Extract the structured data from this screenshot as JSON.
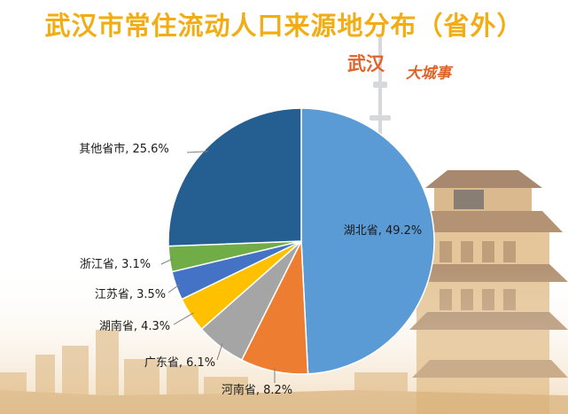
{
  "page": {
    "title": "武汉市常住流动人口来源地分布（省外）",
    "logo_text": "武汉",
    "logo_subtext": "大城事"
  },
  "colors": {
    "title": "#f2ad14",
    "logo": "#e0632a",
    "leader_line": "#7f7f7f",
    "label_text": "#1a1a1a",
    "slice_border": "#ffffff"
  },
  "chart_data": {
    "type": "pie",
    "title": "武汉市常住流动人口来源地分布（省外）",
    "value_unit": "%",
    "start_angle_deg": 0,
    "direction": "clockwise",
    "slices": [
      {
        "label": "湖北省",
        "value": 49.2,
        "value_text": "49.2%",
        "color": "#5b9bd5",
        "label_placement": "inside"
      },
      {
        "label": "河南省",
        "value": 8.2,
        "value_text": "8.2%",
        "color": "#ed7d31",
        "label_placement": "outside"
      },
      {
        "label": "广东省",
        "value": 6.1,
        "value_text": "6.1%",
        "color": "#a5a5a5",
        "label_placement": "outside"
      },
      {
        "label": "湖南省",
        "value": 4.3,
        "value_text": "4.3%",
        "color": "#ffc000",
        "label_placement": "outside"
      },
      {
        "label": "江苏省",
        "value": 3.5,
        "value_text": "3.5%",
        "color": "#4472c4",
        "label_placement": "outside"
      },
      {
        "label": "浙江省",
        "value": 3.1,
        "value_text": "3.1%",
        "color": "#70ad47",
        "label_placement": "outside"
      },
      {
        "label": "其他省市",
        "value": 25.6,
        "value_text": "25.6%",
        "color": "#255e91",
        "label_placement": "outside"
      }
    ]
  }
}
